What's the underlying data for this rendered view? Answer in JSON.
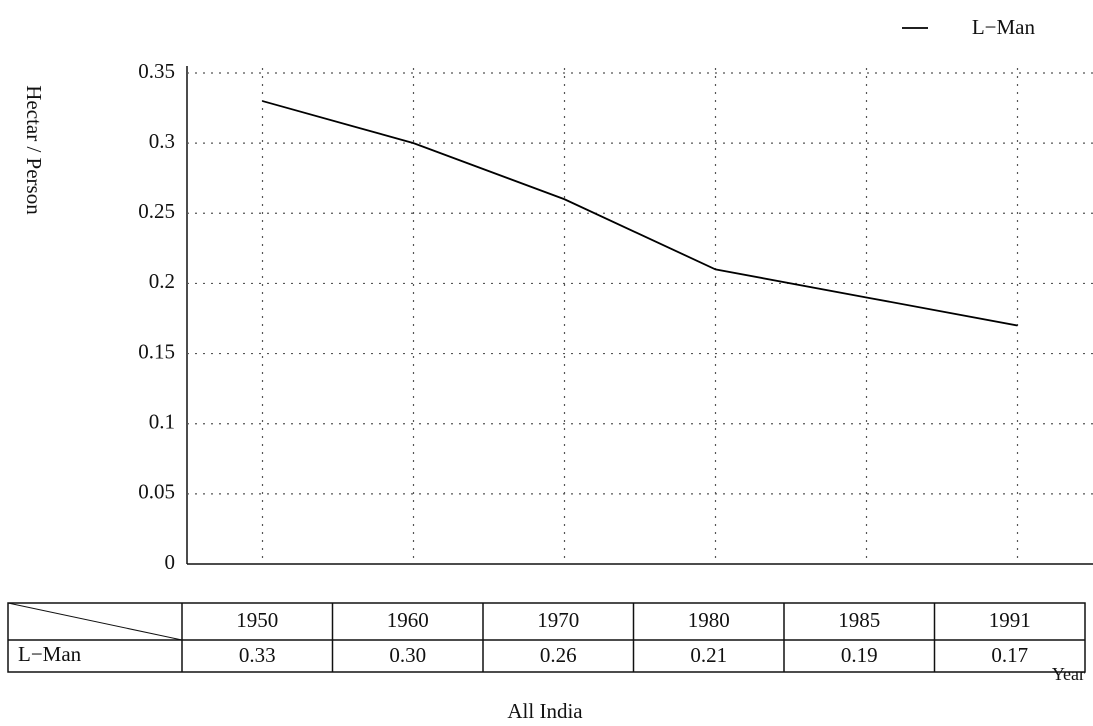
{
  "chart_data": {
    "type": "line",
    "title": "All India",
    "x_label": "Year",
    "y_label": "Hectar / Person",
    "categories": [
      "1950",
      "1960",
      "1970",
      "1980",
      "1985",
      "1991"
    ],
    "series": [
      {
        "name": "L−Man",
        "color": "#000000",
        "values": [
          0.33,
          0.3,
          0.26,
          0.21,
          0.19,
          0.17
        ],
        "value_labels": [
          "0.33",
          "0.30",
          "0.26",
          "0.21",
          "0.19",
          "0.17"
        ]
      }
    ],
    "ylim": [
      0,
      0.35
    ],
    "yticks": [
      0,
      0.05,
      0.1,
      0.15,
      0.2,
      0.25,
      0.3,
      0.35
    ],
    "grid": true,
    "legend": "top-right"
  }
}
